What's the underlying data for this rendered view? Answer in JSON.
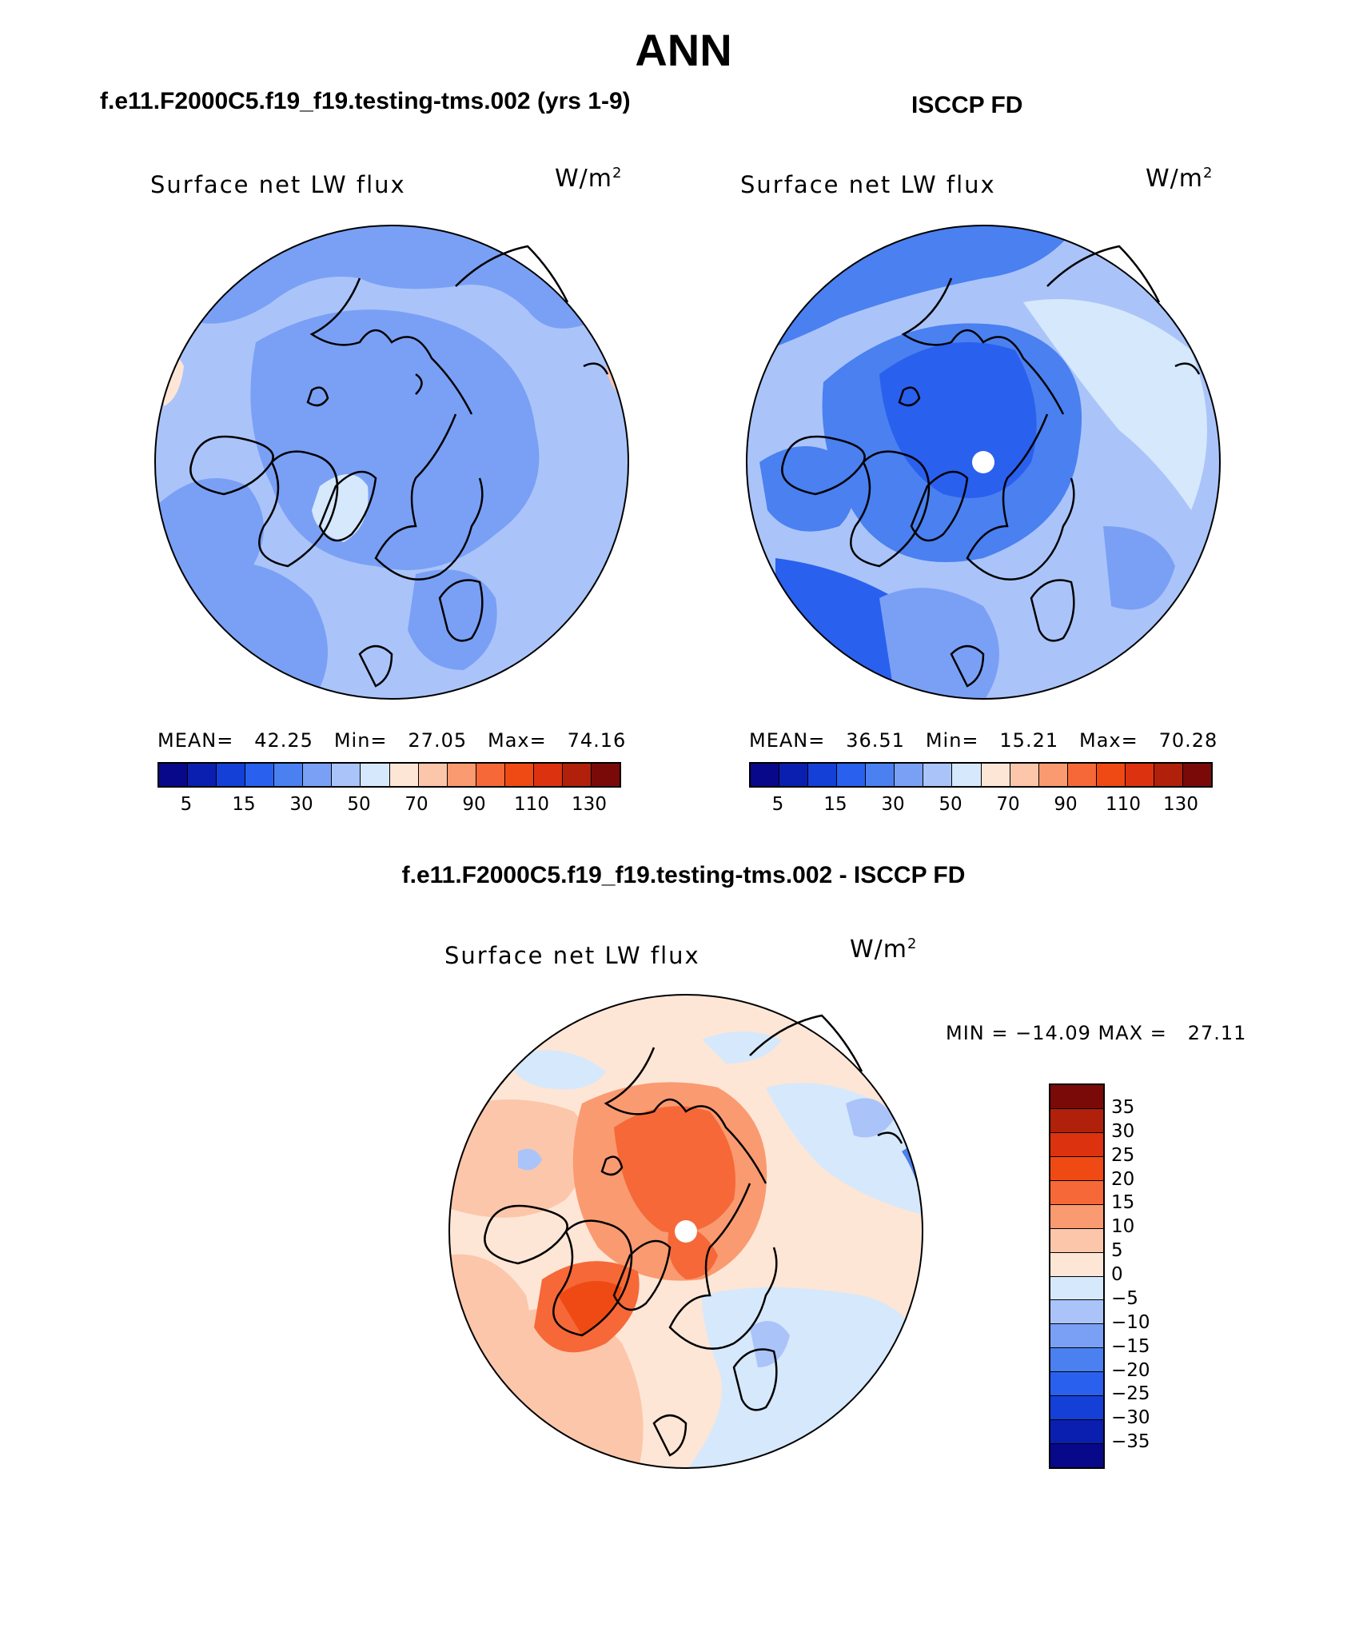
{
  "title": "ANN",
  "panels": [
    {
      "case": "f.e11.F2000C5.f19_f19.testing-tms.002 (yrs 1-9)",
      "label": "Surface net LW flux",
      "units": "W/m",
      "units_sup": "2",
      "stats": "MEAN=   42.25   Min=   27.05   Max=   74.16",
      "mean": 42.25,
      "min": 27.05,
      "max": 74.16
    },
    {
      "case": "ISCCP FD",
      "label": "Surface net LW flux",
      "units": "W/m",
      "units_sup": "2",
      "stats": "MEAN=   36.51   Min=   15.21   Max=   70.28",
      "mean": 36.51,
      "min": 15.21,
      "max": 70.28
    }
  ],
  "diff": {
    "case": "f.e11.F2000C5.f19_f19.testing-tms.002 - ISCCP FD",
    "label": "Surface net LW flux",
    "units": "W/m",
    "units_sup": "2",
    "stats": "MIN = −14.09 MAX =   27.11",
    "min": -14.09,
    "max": 27.11
  },
  "colorbar_levels": {
    "tick_labels": [
      "5",
      "15",
      "30",
      "50",
      "70",
      "90",
      "110",
      "130"
    ],
    "colors": [
      "#08088a",
      "#0a1fb0",
      "#1440d8",
      "#2a60ee",
      "#4a80f0",
      "#7aa0f5",
      "#aac4fa",
      "#d6e8fb",
      "#fde6d6",
      "#fcc6aa",
      "#fa9a70",
      "#f66838",
      "#ef4a14",
      "#dd3210",
      "#b0200a",
      "#7a0a08"
    ]
  },
  "diff_colorbar": {
    "labels": [
      "35",
      "30",
      "25",
      "20",
      "15",
      "10",
      "5",
      "0",
      "−5",
      "−10",
      "−15",
      "−20",
      "−25",
      "−30",
      "−35"
    ],
    "colors": [
      "#7a0a08",
      "#b0200a",
      "#dd3210",
      "#ef4a14",
      "#f66838",
      "#fa9a70",
      "#fcc6aa",
      "#fde6d6",
      "#d6e8fb",
      "#aac4fa",
      "#7aa0f5",
      "#4a80f0",
      "#2a60ee",
      "#1440d8",
      "#0a1fb0",
      "#08088a"
    ]
  },
  "map_colors": {
    "ocean_light": "#aac4fa",
    "ocean_mid": "#7aa0f5",
    "ocean_deep": "#4a80f0",
    "ocean_deeper": "#2a60ee",
    "warm_light": "#fde6d6",
    "warm_mid": "#fcc6aa",
    "warm_strong": "#f66838",
    "pole_fill": "#ffffff"
  }
}
